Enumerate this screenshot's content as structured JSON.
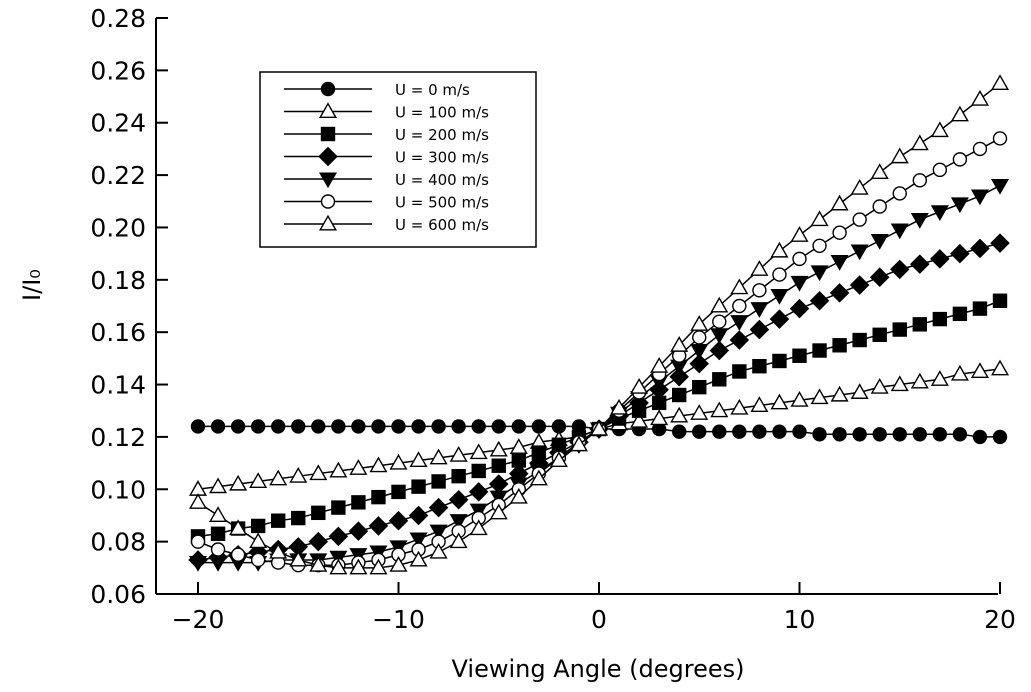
{
  "chart_data": {
    "type": "line",
    "xlabel": "Viewing Angle (degrees)",
    "ylabel": "I/I₀",
    "xlim": [
      -20,
      20
    ],
    "ylim": [
      0.06,
      0.28
    ],
    "xticks": [
      -20,
      -10,
      0,
      10,
      20
    ],
    "xtick_labels": [
      "−20",
      "−10",
      "0",
      "10",
      "20"
    ],
    "yticks": [
      0.06,
      0.08,
      0.1,
      0.12,
      0.14,
      0.16,
      0.18,
      0.2,
      0.22,
      0.24,
      0.26,
      0.28
    ],
    "ytick_labels": [
      "0.06",
      "0.08",
      "0.10",
      "0.12",
      "0.14",
      "0.16",
      "0.18",
      "0.20",
      "0.22",
      "0.24",
      "0.26",
      "0.28"
    ],
    "legend_position": "top-left",
    "grid": false,
    "x": [
      -20,
      -19,
      -18,
      -17,
      -16,
      -15,
      -14,
      -13,
      -12,
      -11,
      -10,
      -9,
      -8,
      -7,
      -6,
      -5,
      -4,
      -3,
      -2,
      -1,
      0,
      1,
      2,
      3,
      4,
      5,
      6,
      7,
      8,
      9,
      10,
      11,
      12,
      13,
      14,
      15,
      16,
      17,
      18,
      19,
      20
    ],
    "series": [
      {
        "name": "U = 0 m/s",
        "marker": "circle-filled",
        "values": [
          0.124,
          0.124,
          0.124,
          0.124,
          0.124,
          0.124,
          0.124,
          0.124,
          0.124,
          0.124,
          0.124,
          0.124,
          0.124,
          0.124,
          0.124,
          0.124,
          0.124,
          0.124,
          0.124,
          0.124,
          0.123,
          0.123,
          0.123,
          0.123,
          0.122,
          0.122,
          0.122,
          0.122,
          0.122,
          0.122,
          0.122,
          0.121,
          0.121,
          0.121,
          0.121,
          0.121,
          0.121,
          0.121,
          0.121,
          0.12,
          0.12
        ]
      },
      {
        "name": "U = 100 m/s",
        "marker": "triangle-open",
        "values": [
          0.1,
          0.101,
          0.102,
          0.103,
          0.104,
          0.105,
          0.106,
          0.107,
          0.108,
          0.109,
          0.11,
          0.111,
          0.112,
          0.113,
          0.114,
          0.115,
          0.116,
          0.118,
          0.119,
          0.12,
          0.123,
          0.125,
          0.126,
          0.127,
          0.128,
          0.129,
          0.13,
          0.131,
          0.132,
          0.133,
          0.134,
          0.135,
          0.136,
          0.137,
          0.139,
          0.14,
          0.141,
          0.142,
          0.144,
          0.145,
          0.146
        ]
      },
      {
        "name": "U = 200 m/s",
        "marker": "square-filled",
        "values": [
          0.082,
          0.083,
          0.085,
          0.086,
          0.088,
          0.089,
          0.091,
          0.093,
          0.095,
          0.097,
          0.099,
          0.101,
          0.103,
          0.105,
          0.107,
          0.109,
          0.111,
          0.114,
          0.117,
          0.12,
          0.123,
          0.127,
          0.13,
          0.133,
          0.136,
          0.139,
          0.142,
          0.145,
          0.147,
          0.149,
          0.151,
          0.153,
          0.155,
          0.157,
          0.159,
          0.161,
          0.163,
          0.165,
          0.167,
          0.169,
          0.172
        ]
      },
      {
        "name": "U = 300 m/s",
        "marker": "diamond-filled",
        "values": [
          0.073,
          0.074,
          0.075,
          0.076,
          0.077,
          0.078,
          0.08,
          0.082,
          0.084,
          0.086,
          0.088,
          0.09,
          0.093,
          0.096,
          0.099,
          0.102,
          0.106,
          0.11,
          0.114,
          0.118,
          0.123,
          0.128,
          0.133,
          0.138,
          0.143,
          0.148,
          0.153,
          0.157,
          0.161,
          0.165,
          0.169,
          0.172,
          0.175,
          0.178,
          0.181,
          0.184,
          0.186,
          0.188,
          0.19,
          0.192,
          0.194
        ]
      },
      {
        "name": "U = 400 m/s",
        "marker": "triangle-down-filled",
        "values": [
          0.072,
          0.072,
          0.072,
          0.072,
          0.073,
          0.073,
          0.073,
          0.074,
          0.075,
          0.076,
          0.078,
          0.081,
          0.084,
          0.088,
          0.092,
          0.097,
          0.102,
          0.107,
          0.112,
          0.117,
          0.123,
          0.129,
          0.135,
          0.141,
          0.147,
          0.153,
          0.159,
          0.164,
          0.169,
          0.174,
          0.179,
          0.183,
          0.187,
          0.191,
          0.195,
          0.199,
          0.203,
          0.206,
          0.209,
          0.212,
          0.216
        ]
      },
      {
        "name": "U = 500 m/s",
        "marker": "circle-open",
        "values": [
          0.08,
          0.077,
          0.075,
          0.073,
          0.072,
          0.071,
          0.071,
          0.071,
          0.072,
          0.073,
          0.075,
          0.077,
          0.08,
          0.084,
          0.089,
          0.094,
          0.1,
          0.106,
          0.112,
          0.118,
          0.123,
          0.13,
          0.137,
          0.144,
          0.151,
          0.158,
          0.164,
          0.17,
          0.176,
          0.182,
          0.188,
          0.193,
          0.198,
          0.203,
          0.208,
          0.213,
          0.218,
          0.222,
          0.226,
          0.23,
          0.234
        ]
      },
      {
        "name": "U = 600 m/s",
        "marker": "triangle-open",
        "values": [
          0.095,
          0.09,
          0.085,
          0.08,
          0.076,
          0.073,
          0.071,
          0.07,
          0.07,
          0.07,
          0.071,
          0.073,
          0.076,
          0.08,
          0.085,
          0.091,
          0.097,
          0.104,
          0.111,
          0.117,
          0.123,
          0.131,
          0.139,
          0.147,
          0.155,
          0.163,
          0.17,
          0.177,
          0.184,
          0.191,
          0.197,
          0.203,
          0.209,
          0.215,
          0.221,
          0.227,
          0.232,
          0.237,
          0.243,
          0.249,
          0.255
        ]
      }
    ]
  }
}
